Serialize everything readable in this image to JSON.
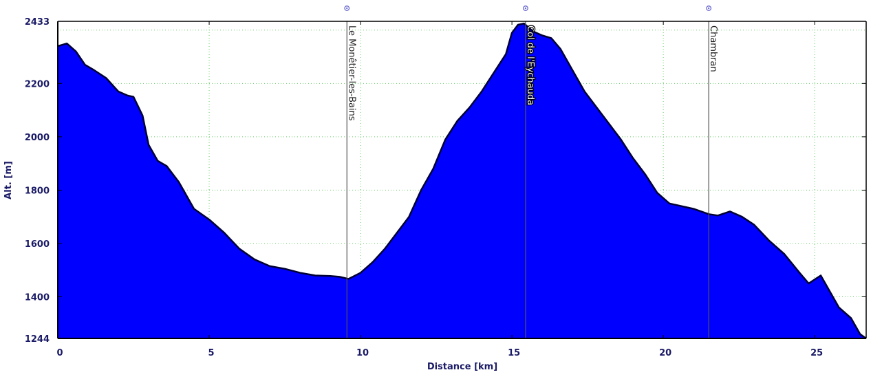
{
  "chart_data": {
    "type": "area",
    "xlabel": "Distance [km]",
    "ylabel": "Alt. [m]",
    "xlim": [
      0,
      26.7
    ],
    "ylim": [
      1244,
      2433
    ],
    "x_ticks": [
      0,
      5,
      10,
      15,
      20,
      25
    ],
    "y_ticks": [
      1244,
      1400,
      1600,
      1800,
      2000,
      2200,
      2433
    ],
    "grid": true,
    "colors": {
      "fill": "#0000ff",
      "line": "#000033",
      "grid": "#66cc66",
      "tick_text": "#1a1a66"
    },
    "series": [
      {
        "x": [
          0,
          0.3,
          0.6,
          0.9,
          1.2,
          1.6,
          2.0,
          2.3,
          2.5,
          2.8,
          3.0,
          3.3,
          3.6,
          4.0,
          4.5,
          5.0,
          5.5,
          6.0,
          6.5,
          7.0,
          7.5,
          8.0,
          8.5,
          9.0,
          9.3,
          9.6,
          10.0,
          10.4,
          10.8,
          11.2,
          11.6,
          12.0,
          12.4,
          12.8,
          13.2,
          13.6,
          14.0,
          14.4,
          14.8,
          15.0,
          15.2,
          15.4,
          15.7,
          16.0,
          16.3,
          16.6,
          17.0,
          17.4,
          17.8,
          18.2,
          18.6,
          19.0,
          19.4,
          19.8,
          20.2,
          20.6,
          21.0,
          21.5,
          21.8,
          22.2,
          22.6,
          23.0,
          23.5,
          24.0,
          24.5,
          24.8,
          25.2,
          25.5,
          25.8,
          26.2,
          26.5,
          26.7
        ],
        "y": [
          2340,
          2350,
          2320,
          2270,
          2250,
          2220,
          2170,
          2155,
          2150,
          2080,
          1970,
          1910,
          1890,
          1830,
          1730,
          1690,
          1640,
          1580,
          1540,
          1515,
          1505,
          1490,
          1480,
          1478,
          1475,
          1467,
          1490,
          1530,
          1580,
          1640,
          1700,
          1800,
          1880,
          1990,
          2060,
          2110,
          2170,
          2240,
          2310,
          2390,
          2420,
          2425,
          2395,
          2380,
          2370,
          2330,
          2250,
          2170,
          2110,
          2050,
          1990,
          1920,
          1860,
          1790,
          1750,
          1740,
          1730,
          1710,
          1705,
          1720,
          1700,
          1670,
          1610,
          1560,
          1490,
          1450,
          1480,
          1420,
          1360,
          1320,
          1260,
          1244
        ]
      }
    ],
    "waypoints": [
      {
        "label": "Le Monêtier-les-Bains",
        "x": 9.55,
        "highlight": false
      },
      {
        "label": "Col de l'Eychauda",
        "x": 15.45,
        "highlight": true
      },
      {
        "label": "Chambran",
        "x": 21.5,
        "highlight": false
      }
    ]
  }
}
